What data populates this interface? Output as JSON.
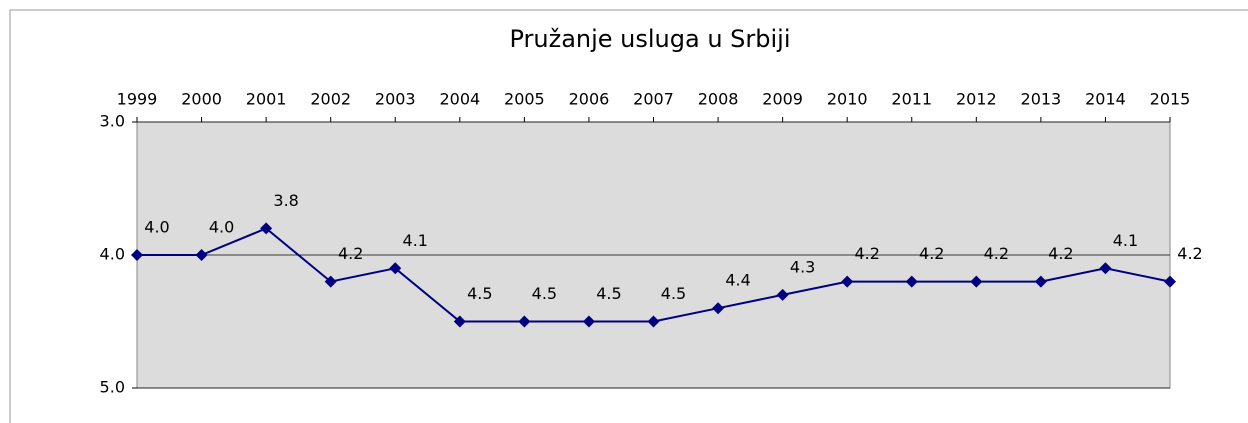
{
  "chart_data": {
    "type": "line",
    "title": "Pružanje usluga u Srbiji",
    "categories": [
      "1999",
      "2000",
      "2001",
      "2002",
      "2003",
      "2004",
      "2005",
      "2006",
      "2007",
      "2008",
      "2009",
      "2010",
      "2011",
      "2012",
      "2013",
      "2014",
      "2015"
    ],
    "series": [
      {
        "name": "Pružanje usluga u Srbiji",
        "color": "#000080",
        "values": [
          4.0,
          4.0,
          3.8,
          4.2,
          4.1,
          4.5,
          4.5,
          4.5,
          4.5,
          4.4,
          4.3,
          4.2,
          4.2,
          4.2,
          4.2,
          4.1,
          4.2
        ],
        "value_labels": [
          "4.0",
          "4.0",
          "3.8",
          "4.2",
          "4.1",
          "4.5",
          "4.5",
          "4.5",
          "4.5",
          "4.4",
          "4.3",
          "4.2",
          "4.2",
          "4.2",
          "4.2",
          "4.1",
          "4.2"
        ]
      }
    ],
    "ylim": [
      3.0,
      5.0
    ],
    "yticks": [
      {
        "value": 3.0,
        "label": "3.0"
      },
      {
        "value": 4.0,
        "label": "4.0"
      },
      {
        "value": 5.0,
        "label": "5.0"
      }
    ],
    "y_inverted": true,
    "x_axis_position": "top",
    "grid": true,
    "plot_background": "#dcdcdc"
  }
}
